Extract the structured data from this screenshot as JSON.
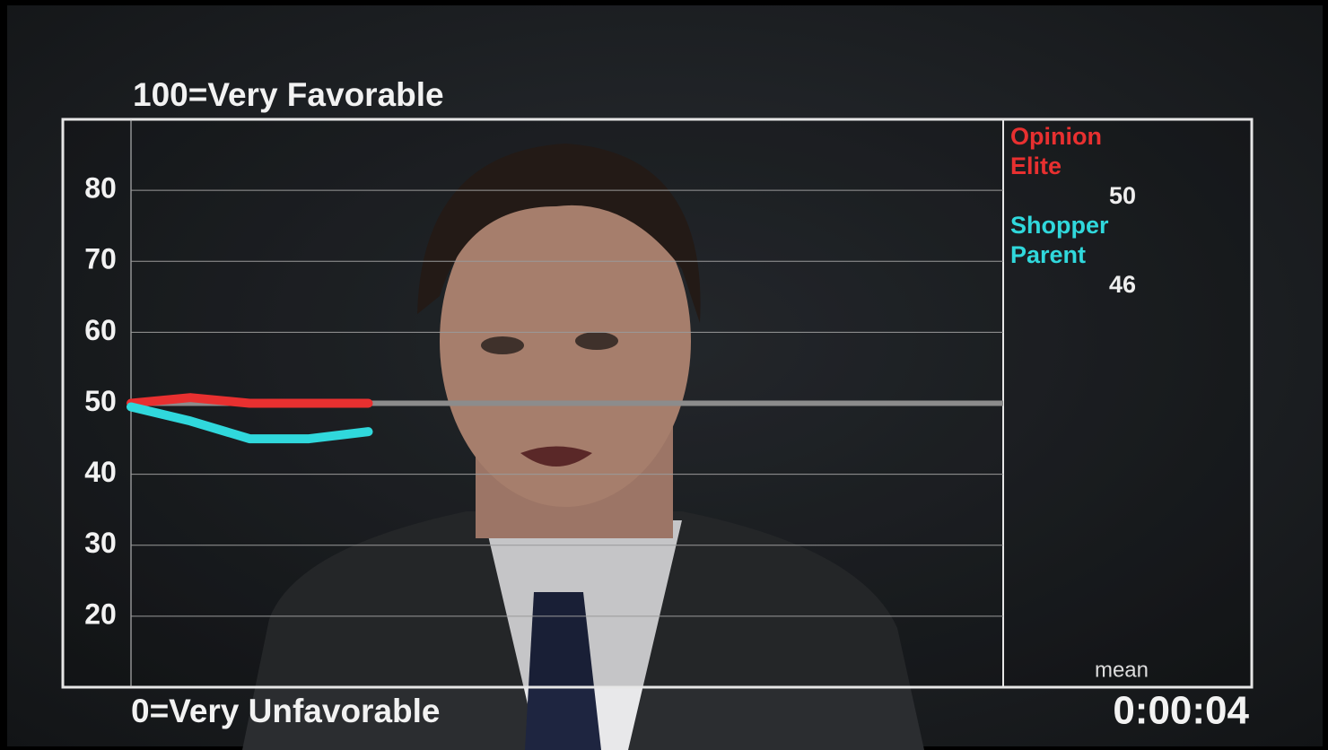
{
  "chart_data": {
    "type": "line",
    "title": "100=Very Favorable",
    "subtitle": "0=Very Unfavorable",
    "x": [
      0,
      1,
      2,
      3,
      4
    ],
    "xlim": [
      0,
      14.7
    ],
    "ylim": [
      10,
      90
    ],
    "yticks": [
      20,
      30,
      40,
      50,
      60,
      70,
      80
    ],
    "grid": true,
    "reference_line": 50,
    "series": [
      {
        "name": "Opinion Elite",
        "color": "#e83030",
        "values": [
          50,
          50.8,
          50,
          50,
          50
        ],
        "mean": 50
      },
      {
        "name": "Shopper Parent",
        "color": "#30d8dc",
        "values": [
          49.5,
          47.5,
          45,
          45,
          46
        ],
        "mean": 46
      }
    ],
    "legend_label": "mean",
    "timer": "0:00:04"
  }
}
